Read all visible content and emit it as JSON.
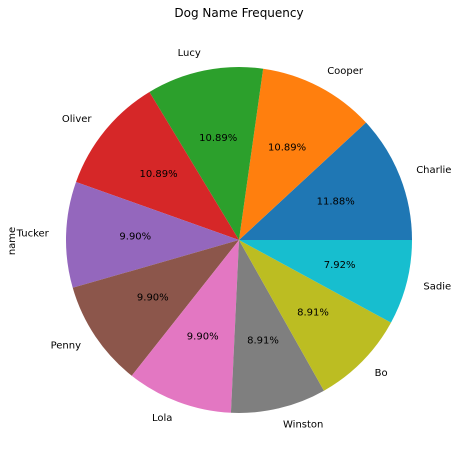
{
  "chart_data": {
    "type": "pie",
    "title": "Dog Name Frequency",
    "ylabel": "name",
    "start_angle_deg": 0,
    "direction": "counterclockwise",
    "slices": [
      {
        "label": "Charlie",
        "value": 11.88,
        "pct_label": "11.88%",
        "color": "#1f77b4"
      },
      {
        "label": "Cooper",
        "value": 10.89,
        "pct_label": "10.89%",
        "color": "#ff7f0e"
      },
      {
        "label": "Lucy",
        "value": 10.89,
        "pct_label": "10.89%",
        "color": "#2ca02c"
      },
      {
        "label": "Oliver",
        "value": 10.89,
        "pct_label": "10.89%",
        "color": "#d62728"
      },
      {
        "label": "Tucker",
        "value": 9.9,
        "pct_label": "9.90%",
        "color": "#9467bd"
      },
      {
        "label": "Penny",
        "value": 9.9,
        "pct_label": "9.90%",
        "color": "#8c564b"
      },
      {
        "label": "Lola",
        "value": 9.9,
        "pct_label": "9.90%",
        "color": "#e377c2"
      },
      {
        "label": "Winston",
        "value": 8.91,
        "pct_label": "8.91%",
        "color": "#7f7f7f"
      },
      {
        "label": "Bo",
        "value": 8.91,
        "pct_label": "8.91%",
        "color": "#bcbd22"
      },
      {
        "label": "Sadie",
        "value": 7.92,
        "pct_label": "7.92%",
        "color": "#17becf"
      }
    ]
  }
}
